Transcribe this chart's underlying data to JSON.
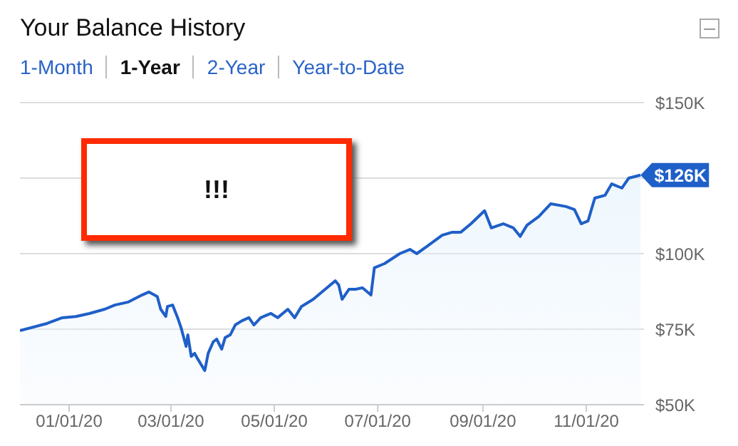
{
  "chart_data": {
    "type": "area",
    "title": "Your Balance History",
    "annotations": [
      "1-Month",
      "1-Year",
      "2-Year",
      "Year-to-Date",
      "!!!",
      {
        "text": "$126K",
        "x": "2020-12-03",
        "y": 126
      }
    ],
    "x": [
      "2019-12-03",
      "2019-12-19",
      "2019-12-28",
      "2020-01-05",
      "2020-01-13",
      "2020-01-22",
      "2020-01-28",
      "2020-02-05",
      "2020-02-13",
      "2020-02-17",
      "2020-02-22",
      "2020-02-24",
      "2020-02-27",
      "2020-02-28",
      "2020-03-02",
      "2020-03-05",
      "2020-03-07",
      "2020-03-10",
      "2020-03-11",
      "2020-03-13",
      "2020-03-15",
      "2020-03-17",
      "2020-03-21",
      "2020-03-23",
      "2020-03-26",
      "2020-03-28",
      "2020-03-31",
      "2020-04-02",
      "2020-04-05",
      "2020-04-08",
      "2020-04-12",
      "2020-04-16",
      "2020-04-19",
      "2020-04-23",
      "2020-04-29",
      "2020-05-03",
      "2020-05-09",
      "2020-05-13",
      "2020-05-17",
      "2020-05-24",
      "2020-05-31",
      "2020-06-06",
      "2020-06-08",
      "2020-06-10",
      "2020-06-14",
      "2020-06-18",
      "2020-06-22",
      "2020-06-27",
      "2020-06-29",
      "2020-07-05",
      "2020-07-14",
      "2020-07-20",
      "2020-07-24",
      "2020-07-30",
      "2020-08-08",
      "2020-08-14",
      "2020-08-19",
      "2020-08-25",
      "2020-09-02",
      "2020-09-06",
      "2020-09-13",
      "2020-09-19",
      "2020-09-23",
      "2020-09-27",
      "2020-10-04",
      "2020-10-11",
      "2020-10-20",
      "2020-10-25",
      "2020-10-29",
      "2020-11-02",
      "2020-11-06",
      "2020-11-12",
      "2020-11-16",
      "2020-11-22",
      "2020-11-26",
      "2020-12-03"
    ],
    "series": [
      {
        "color": "#1f5fc8",
        "values": [
          74.5,
          76.9,
          78.8,
          79.2,
          80.2,
          81.6,
          83,
          84,
          86.3,
          87.3,
          85.8,
          81.6,
          79.2,
          82.5,
          83,
          78.8,
          75.5,
          69.3,
          73.1,
          66,
          67,
          65,
          61.3,
          67,
          70.8,
          71.7,
          68.4,
          72.2,
          73.1,
          76.4,
          77.8,
          78.8,
          76.4,
          78.8,
          80.2,
          78.8,
          81.6,
          78.8,
          82.5,
          84.9,
          88.2,
          91,
          89.6,
          84.9,
          88.2,
          88.2,
          88.7,
          86.3,
          95.3,
          96.7,
          100,
          101.4,
          100,
          102.4,
          106.1,
          107.1,
          107.1,
          109.9,
          114.2,
          108.5,
          109.9,
          108.5,
          105.7,
          109.4,
          112.3,
          116.5,
          115.6,
          114.6,
          109.9,
          110.8,
          118.4,
          119.3,
          123.1,
          121.7,
          125,
          126
        ]
      }
    ],
    "xlim": [
      "2019-12-03",
      "2020-12-05"
    ],
    "xticks": [
      {
        "value": "2020-01-01",
        "label": "01/01/20"
      },
      {
        "value": "2020-03-01",
        "label": "03/01/20"
      },
      {
        "value": "2020-05-01",
        "label": "05/01/20"
      },
      {
        "value": "2020-07-01",
        "label": "07/01/20"
      },
      {
        "value": "2020-09-01",
        "label": "09/01/20"
      },
      {
        "value": "2020-11-01",
        "label": "11/01/20"
      }
    ],
    "ylim": [
      50,
      150
    ],
    "yticks": [
      {
        "value": 50,
        "label": "$50K"
      },
      {
        "value": 75,
        "label": "$75K"
      },
      {
        "value": 100,
        "label": "$100K"
      },
      {
        "value": 125,
        "label": null
      },
      {
        "value": 150,
        "label": "$150K"
      }
    ],
    "grid": "y",
    "legend": false
  }
}
